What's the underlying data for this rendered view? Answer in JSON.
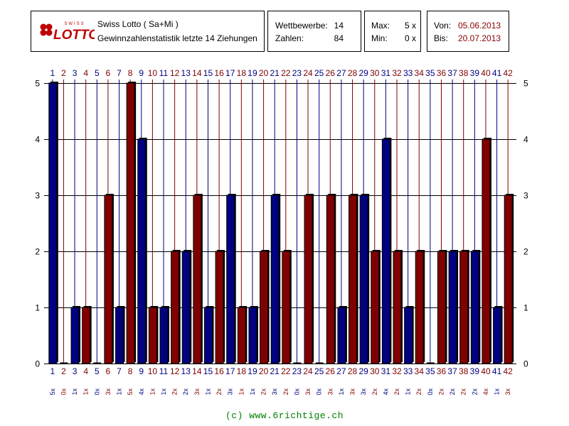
{
  "header": {
    "app_title": "Swiss Lotto ( Sa+Mi )",
    "subtitle": "Gewinnzahlenstatistik letzte 14 Ziehungen",
    "logo_small_text": "SWISS",
    "logo_text": "LOTTO",
    "wettbewerbe_label": "Wettbewerbe:",
    "wettbewerbe_value": "14",
    "zahlen_label": "Zahlen:",
    "zahlen_value": "84",
    "max_label": "Max:",
    "max_value": "5 x",
    "min_label": "Min:",
    "min_value": "0 x",
    "von_label": "Von:",
    "von_value": "05.06.2013",
    "bis_label": "Bis:",
    "bis_value": "20.07.2013"
  },
  "colors": {
    "blue": "#000080",
    "red": "#800000",
    "grid": "#000000",
    "footer": "#008000"
  },
  "chart_data": {
    "type": "bar",
    "categories": [
      "1",
      "2",
      "3",
      "4",
      "5",
      "6",
      "7",
      "8",
      "9",
      "10",
      "11",
      "12",
      "13",
      "14",
      "15",
      "16",
      "17",
      "18",
      "19",
      "20",
      "21",
      "22",
      "23",
      "24",
      "25",
      "26",
      "27",
      "28",
      "29",
      "30",
      "31",
      "32",
      "33",
      "34",
      "35",
      "36",
      "37",
      "38",
      "39",
      "40",
      "41",
      "42"
    ],
    "values": [
      5,
      0,
      1,
      1,
      0,
      3,
      1,
      5,
      4,
      1,
      1,
      2,
      2,
      3,
      1,
      2,
      3,
      1,
      1,
      2,
      3,
      2,
      0,
      3,
      0,
      3,
      1,
      3,
      3,
      2,
      4,
      2,
      1,
      2,
      0,
      2,
      2,
      2,
      2,
      4,
      1,
      3
    ],
    "value_labels": [
      "5x",
      "0x",
      "1x",
      "1x",
      "0x",
      "3x",
      "1x",
      "5x",
      "4x",
      "1x",
      "1x",
      "2x",
      "2x",
      "3x",
      "1x",
      "2x",
      "3x",
      "1x",
      "1x",
      "2x",
      "3x",
      "2x",
      "0x",
      "3x",
      "0x",
      "3x",
      "1x",
      "3x",
      "3x",
      "2x",
      "4x",
      "2x",
      "1x",
      "2x",
      "0x",
      "2x",
      "2x",
      "2x",
      "2x",
      "4x",
      "1x",
      "3x"
    ],
    "bar_colors": [
      "blue",
      "red",
      "blue",
      "red",
      "blue",
      "red",
      "blue",
      "red",
      "blue",
      "red",
      "blue",
      "red",
      "blue",
      "red",
      "blue",
      "red",
      "blue",
      "red",
      "blue",
      "red",
      "blue",
      "red",
      "blue",
      "red",
      "blue",
      "red",
      "blue",
      "red",
      "blue",
      "red",
      "blue",
      "red",
      "blue",
      "red",
      "blue",
      "red",
      "blue",
      "red",
      "blue",
      "red",
      "blue",
      "red"
    ],
    "yticks": [
      0,
      1,
      2,
      3,
      4,
      5
    ],
    "ylim": [
      0,
      5
    ],
    "grid": true
  },
  "footer": "(c) www.6richtige.ch"
}
